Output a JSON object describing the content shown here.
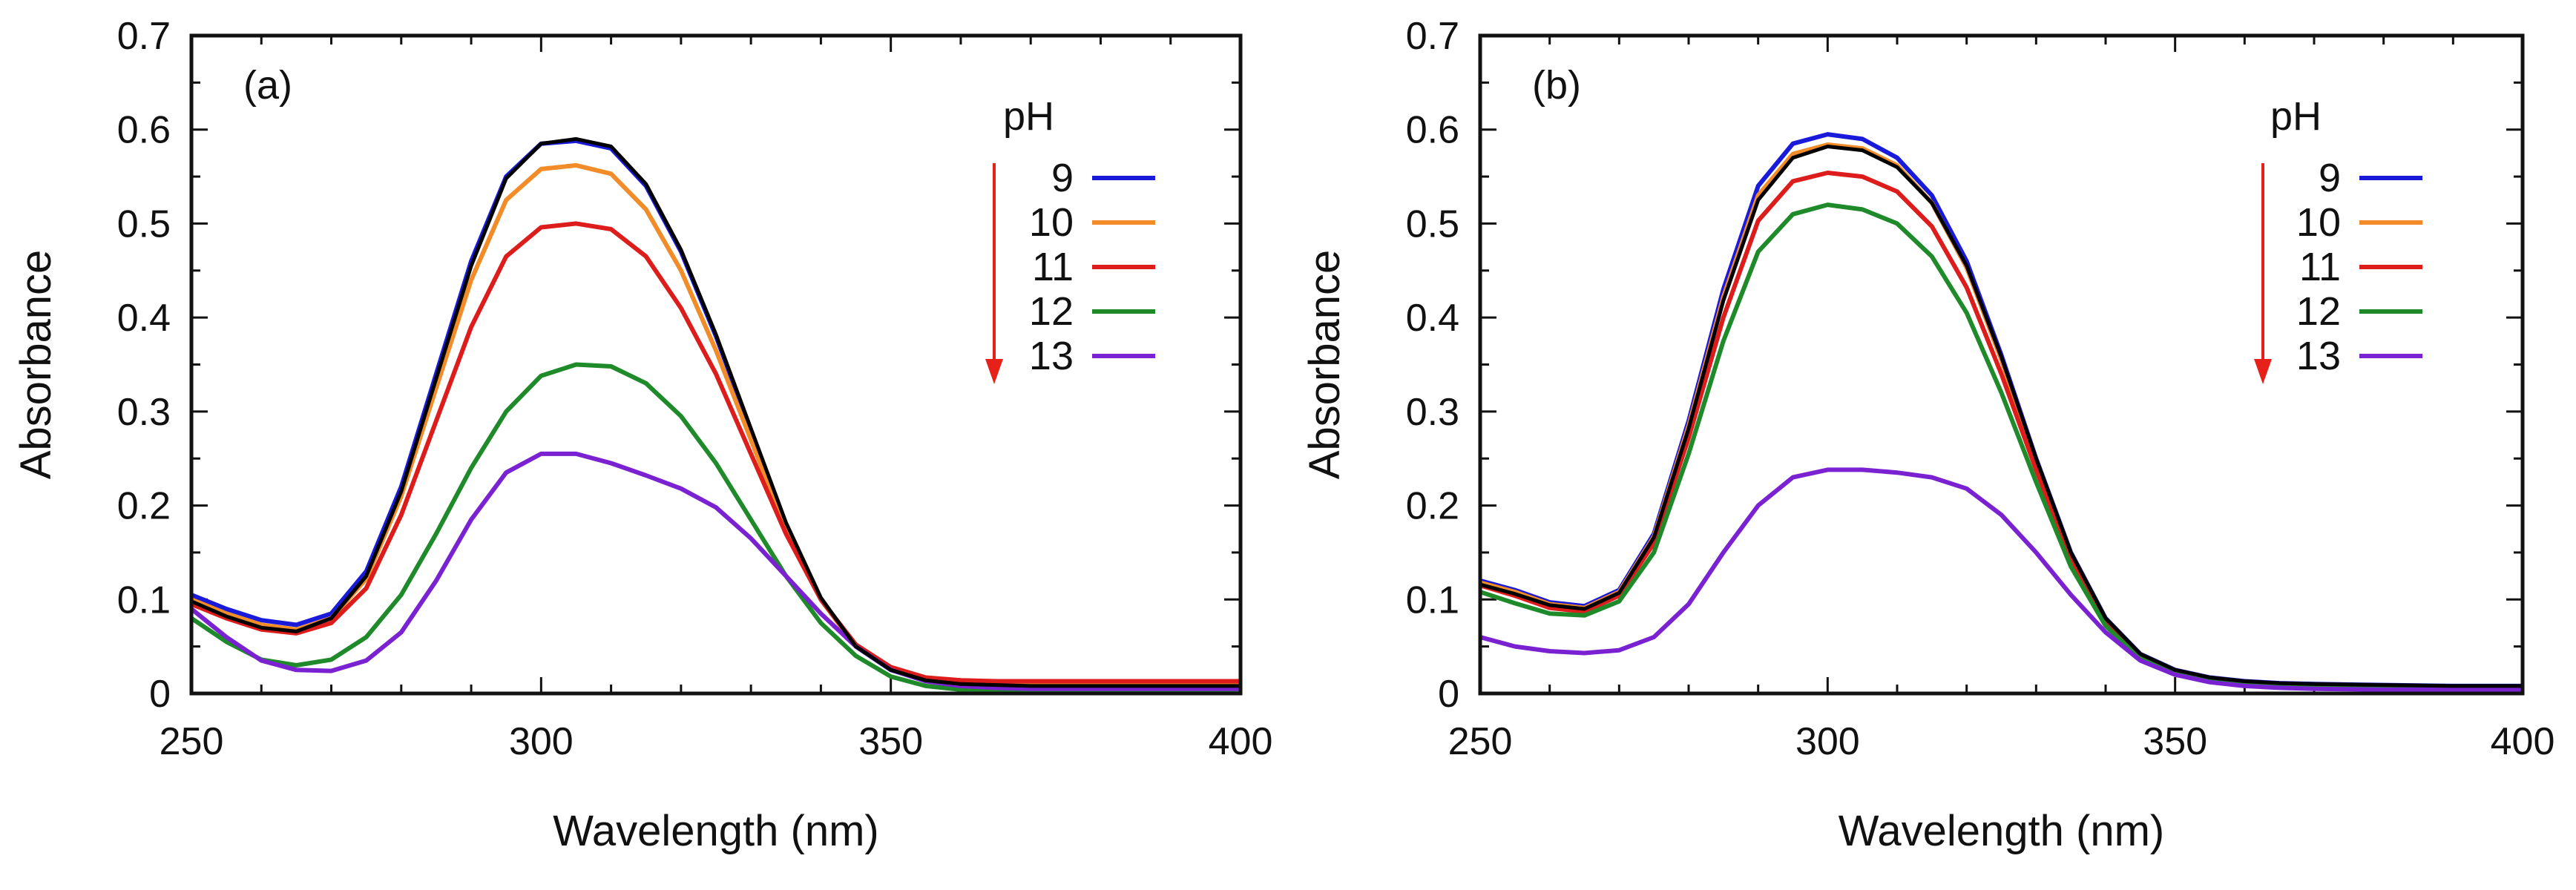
{
  "figure": {
    "panels": [
      "(a)",
      "(b)"
    ]
  },
  "chart_data": [
    {
      "type": "line",
      "panel_label": "(a)",
      "xlabel": "Wavelength (nm)",
      "ylabel": "Absorbance",
      "xlim": [
        250,
        400
      ],
      "ylim": [
        0,
        0.7
      ],
      "xticks": [
        250,
        300,
        350,
        400
      ],
      "yticks": [
        0,
        0.1,
        0.2,
        0.3,
        0.4,
        0.5,
        0.6,
        0.7
      ],
      "x": [
        250,
        255,
        260,
        265,
        270,
        275,
        280,
        285,
        290,
        295,
        300,
        305,
        310,
        315,
        320,
        325,
        330,
        335,
        340,
        345,
        350,
        355,
        360,
        365,
        370,
        380,
        390,
        400
      ],
      "legend": {
        "title": "pH",
        "entries": [
          "9",
          "10",
          "11",
          "12",
          "13"
        ]
      },
      "series": [
        {
          "name": "9",
          "color": "#1a1adb",
          "values": [
            0.105,
            0.09,
            0.078,
            0.073,
            0.085,
            0.13,
            0.22,
            0.34,
            0.46,
            0.55,
            0.585,
            0.588,
            0.58,
            0.54,
            0.47,
            0.38,
            0.28,
            0.18,
            0.1,
            0.05,
            0.025,
            0.014,
            0.01,
            0.009,
            0.008,
            0.008,
            0.008,
            0.008
          ]
        },
        {
          "name": "10",
          "color": "#f28c28",
          "values": [
            0.1,
            0.085,
            0.073,
            0.068,
            0.08,
            0.122,
            0.21,
            0.325,
            0.44,
            0.525,
            0.558,
            0.562,
            0.553,
            0.515,
            0.45,
            0.365,
            0.27,
            0.175,
            0.1,
            0.05,
            0.026,
            0.015,
            0.012,
            0.011,
            0.011,
            0.011,
            0.011,
            0.011
          ]
        },
        {
          "name": "11",
          "color": "#dd1c1c",
          "values": [
            0.095,
            0.08,
            0.068,
            0.064,
            0.075,
            0.112,
            0.19,
            0.29,
            0.39,
            0.465,
            0.496,
            0.5,
            0.494,
            0.465,
            0.41,
            0.34,
            0.255,
            0.17,
            0.1,
            0.052,
            0.028,
            0.017,
            0.014,
            0.013,
            0.013,
            0.013,
            0.013,
            0.013
          ]
        },
        {
          "name": "12",
          "color": "#1e8a2a",
          "values": [
            0.08,
            0.055,
            0.036,
            0.03,
            0.036,
            0.06,
            0.105,
            0.17,
            0.24,
            0.3,
            0.338,
            0.35,
            0.348,
            0.33,
            0.295,
            0.245,
            0.185,
            0.125,
            0.075,
            0.04,
            0.018,
            0.008,
            0.004,
            0.003,
            0.003,
            0.003,
            0.003,
            0.003
          ]
        },
        {
          "name": "13",
          "color": "#7a22d1",
          "values": [
            0.09,
            0.06,
            0.035,
            0.025,
            0.024,
            0.035,
            0.065,
            0.12,
            0.185,
            0.235,
            0.255,
            0.255,
            0.245,
            0.232,
            0.218,
            0.198,
            0.165,
            0.125,
            0.085,
            0.05,
            0.025,
            0.013,
            0.008,
            0.006,
            0.005,
            0.005,
            0.005,
            0.005
          ]
        },
        {
          "name": "",
          "color": "#000000",
          "values": [
            0.098,
            0.082,
            0.07,
            0.066,
            0.08,
            0.125,
            0.215,
            0.335,
            0.455,
            0.548,
            0.585,
            0.59,
            0.582,
            0.542,
            0.472,
            0.382,
            0.282,
            0.182,
            0.102,
            0.05,
            0.025,
            0.014,
            0.01,
            0.009,
            0.008,
            0.008,
            0.008,
            0.008
          ]
        }
      ]
    },
    {
      "type": "line",
      "panel_label": "(b)",
      "xlabel": "Wavelength (nm)",
      "ylabel": "Absorbance",
      "xlim": [
        250,
        400
      ],
      "ylim": [
        0,
        0.7
      ],
      "xticks": [
        250,
        300,
        350,
        400
      ],
      "yticks": [
        0,
        0.1,
        0.2,
        0.3,
        0.4,
        0.5,
        0.6,
        0.7
      ],
      "x": [
        250,
        255,
        260,
        265,
        270,
        275,
        280,
        285,
        290,
        295,
        300,
        305,
        310,
        315,
        320,
        325,
        330,
        335,
        340,
        345,
        350,
        355,
        360,
        365,
        370,
        380,
        390,
        400
      ],
      "legend": {
        "title": "pH",
        "entries": [
          "9",
          "10",
          "11",
          "12",
          "13"
        ]
      },
      "series": [
        {
          "name": "9",
          "color": "#1a1adb",
          "values": [
            0.12,
            0.11,
            0.097,
            0.093,
            0.11,
            0.17,
            0.29,
            0.43,
            0.54,
            0.585,
            0.595,
            0.59,
            0.57,
            0.53,
            0.46,
            0.36,
            0.25,
            0.15,
            0.08,
            0.042,
            0.025,
            0.017,
            0.013,
            0.011,
            0.01,
            0.009,
            0.008,
            0.008
          ]
        },
        {
          "name": "10",
          "color": "#f28c28",
          "values": [
            0.118,
            0.108,
            0.095,
            0.091,
            0.108,
            0.167,
            0.285,
            0.422,
            0.53,
            0.574,
            0.584,
            0.58,
            0.562,
            0.522,
            0.453,
            0.355,
            0.247,
            0.148,
            0.079,
            0.041,
            0.024,
            0.016,
            0.012,
            0.01,
            0.009,
            0.008,
            0.007,
            0.007
          ]
        },
        {
          "name": "11",
          "color": "#dd1c1c",
          "values": [
            0.115,
            0.104,
            0.091,
            0.087,
            0.104,
            0.16,
            0.272,
            0.4,
            0.503,
            0.545,
            0.554,
            0.55,
            0.534,
            0.497,
            0.432,
            0.34,
            0.238,
            0.143,
            0.077,
            0.04,
            0.023,
            0.015,
            0.011,
            0.009,
            0.008,
            0.007,
            0.006,
            0.006
          ]
        },
        {
          "name": "12",
          "color": "#1e8a2a",
          "values": [
            0.108,
            0.096,
            0.085,
            0.083,
            0.098,
            0.15,
            0.255,
            0.375,
            0.47,
            0.51,
            0.52,
            0.515,
            0.5,
            0.465,
            0.405,
            0.32,
            0.225,
            0.135,
            0.072,
            0.037,
            0.021,
            0.013,
            0.01,
            0.008,
            0.007,
            0.006,
            0.005,
            0.005
          ]
        },
        {
          "name": "13",
          "color": "#7a22d1",
          "values": [
            0.06,
            0.05,
            0.045,
            0.043,
            0.046,
            0.06,
            0.095,
            0.15,
            0.2,
            0.23,
            0.238,
            0.238,
            0.235,
            0.23,
            0.218,
            0.19,
            0.15,
            0.105,
            0.065,
            0.035,
            0.02,
            0.012,
            0.008,
            0.006,
            0.005,
            0.004,
            0.004,
            0.004
          ]
        },
        {
          "name": "",
          "color": "#000000",
          "values": [
            0.116,
            0.106,
            0.094,
            0.09,
            0.107,
            0.166,
            0.282,
            0.418,
            0.525,
            0.57,
            0.582,
            0.578,
            0.56,
            0.522,
            0.455,
            0.358,
            0.25,
            0.15,
            0.08,
            0.042,
            0.025,
            0.017,
            0.013,
            0.011,
            0.01,
            0.009,
            0.008,
            0.008
          ]
        }
      ]
    }
  ]
}
